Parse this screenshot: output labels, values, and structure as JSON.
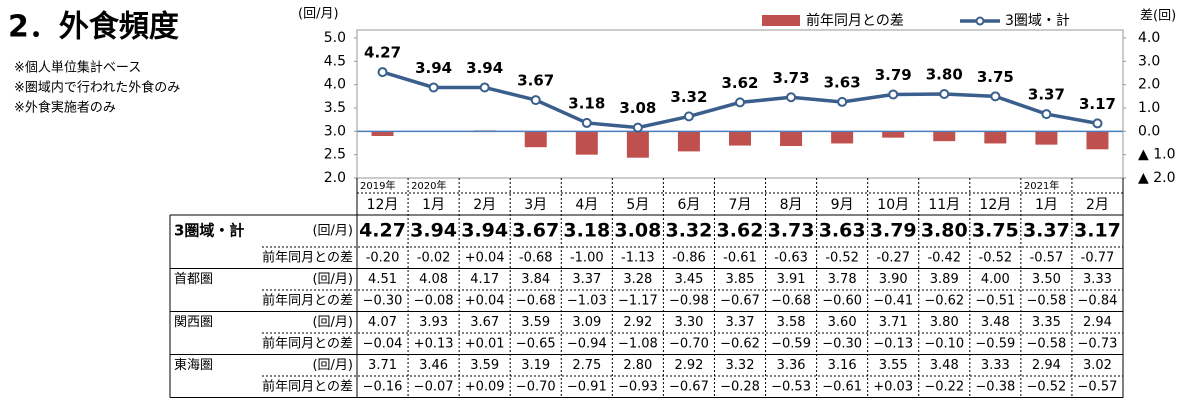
{
  "header": {
    "title": "2．外食頻度",
    "notes": [
      "※個人単位集計ベース",
      "※圏域内で行われた外食のみ",
      "※外食実施者のみ"
    ]
  },
  "chart_data": {
    "type": "combo",
    "ylabel": "(回/月)",
    "y2label": "差(回)",
    "categories": [
      "12月",
      "1月",
      "2月",
      "3月",
      "4月",
      "5月",
      "6月",
      "7月",
      "8月",
      "9月",
      "10月",
      "11月",
      "12月",
      "1月",
      "2月"
    ],
    "years": [
      "2019年",
      "2020年",
      null,
      null,
      null,
      null,
      null,
      null,
      null,
      null,
      null,
      null,
      null,
      "2021年",
      null
    ],
    "ylim": [
      2.0,
      5.0
    ],
    "yticks": [
      {
        "value": 2.0,
        "label": "2.0"
      },
      {
        "value": 2.5,
        "label": "2.5"
      },
      {
        "value": 3.0,
        "label": "3.0"
      },
      {
        "value": 3.5,
        "label": "3.5"
      },
      {
        "value": 4.0,
        "label": "4.0"
      },
      {
        "value": 4.5,
        "label": "4.5"
      },
      {
        "value": 5.0,
        "label": "5.0"
      }
    ],
    "y2lim": [
      -2.0,
      4.0
    ],
    "y2ticks": [
      {
        "value": 4.0,
        "label": "4.0"
      },
      {
        "value": 3.0,
        "label": "3.0"
      },
      {
        "value": 2.0,
        "label": "2.0"
      },
      {
        "value": 1.0,
        "label": "1.0"
      },
      {
        "value": 0.0,
        "label": "0.0"
      },
      {
        "value": -1.0,
        "label": "▲ 1.0"
      },
      {
        "value": -2.0,
        "label": "▲ 2.0"
      }
    ],
    "series": [
      {
        "name": "前年同月との差",
        "type": "bar",
        "axis": "y2",
        "color": "#c0504d",
        "values": [
          -0.2,
          -0.02,
          0.04,
          -0.68,
          -1.0,
          -1.13,
          -0.86,
          -0.61,
          -0.63,
          -0.52,
          -0.27,
          -0.42,
          -0.52,
          -0.57,
          -0.77
        ]
      },
      {
        "name": "3圏域・計",
        "type": "line",
        "color": "#3b5f8c",
        "values": [
          4.27,
          3.94,
          3.94,
          3.67,
          3.18,
          3.08,
          3.32,
          3.62,
          3.73,
          3.63,
          3.79,
          3.8,
          3.75,
          3.37,
          3.17
        ],
        "value_labels": [
          "4.27",
          "3.94",
          "3.94",
          "3.67",
          "3.18",
          "3.08",
          "3.32",
          "3.62",
          "3.73",
          "3.63",
          "3.79",
          "3.80",
          "3.75",
          "3.37",
          "3.17"
        ]
      }
    ]
  },
  "table": {
    "rows": [
      {
        "label": "3圏域・計",
        "unit": "(回/月)",
        "values": [
          "4.27",
          "3.94",
          "3.94",
          "3.67",
          "3.18",
          "3.08",
          "3.32",
          "3.62",
          "3.73",
          "3.63",
          "3.79",
          "3.80",
          "3.75",
          "3.37",
          "3.17"
        ]
      },
      {
        "label": "前年同月との差",
        "values": [
          "-0.20",
          "-0.02",
          "+0.04",
          "-0.68",
          "-1.00",
          "-1.13",
          "-0.86",
          "-0.61",
          "-0.63",
          "-0.52",
          "-0.27",
          "-0.42",
          "-0.52",
          "-0.57",
          "-0.77"
        ]
      },
      {
        "label": "首都圏",
        "unit": "(回/月)",
        "values": [
          "4.51",
          "4.08",
          "4.17",
          "3.84",
          "3.37",
          "3.28",
          "3.45",
          "3.85",
          "3.91",
          "3.78",
          "3.90",
          "3.89",
          "4.00",
          "3.50",
          "3.33"
        ]
      },
      {
        "label": "前年同月との差",
        "values": [
          "−0.30",
          "−0.08",
          "+0.04",
          "−0.68",
          "−1.03",
          "−1.17",
          "−0.98",
          "−0.67",
          "−0.68",
          "−0.60",
          "−0.41",
          "−0.62",
          "−0.51",
          "−0.58",
          "−0.84"
        ]
      },
      {
        "label": "関西圏",
        "unit": "(回/月)",
        "values": [
          "4.07",
          "3.93",
          "3.67",
          "3.59",
          "3.09",
          "2.92",
          "3.30",
          "3.37",
          "3.58",
          "3.60",
          "3.71",
          "3.80",
          "3.48",
          "3.35",
          "2.94"
        ]
      },
      {
        "label": "前年同月との差",
        "values": [
          "−0.04",
          "+0.13",
          "+0.01",
          "−0.65",
          "−0.94",
          "−1.08",
          "−0.70",
          "−0.62",
          "−0.59",
          "−0.30",
          "−0.13",
          "−0.10",
          "−0.59",
          "−0.58",
          "−0.73"
        ]
      },
      {
        "label": "東海圏",
        "unit": "(回/月)",
        "values": [
          "3.71",
          "3.46",
          "3.59",
          "3.19",
          "2.75",
          "2.80",
          "2.92",
          "3.32",
          "3.36",
          "3.16",
          "3.55",
          "3.48",
          "3.33",
          "2.94",
          "3.02"
        ]
      },
      {
        "label": "前年同月との差",
        "values": [
          "−0.16",
          "−0.07",
          "+0.09",
          "−0.70",
          "−0.91",
          "−0.93",
          "−0.67",
          "−0.28",
          "−0.53",
          "−0.61",
          "+0.03",
          "−0.22",
          "−0.38",
          "−0.52",
          "−0.57"
        ]
      }
    ]
  }
}
